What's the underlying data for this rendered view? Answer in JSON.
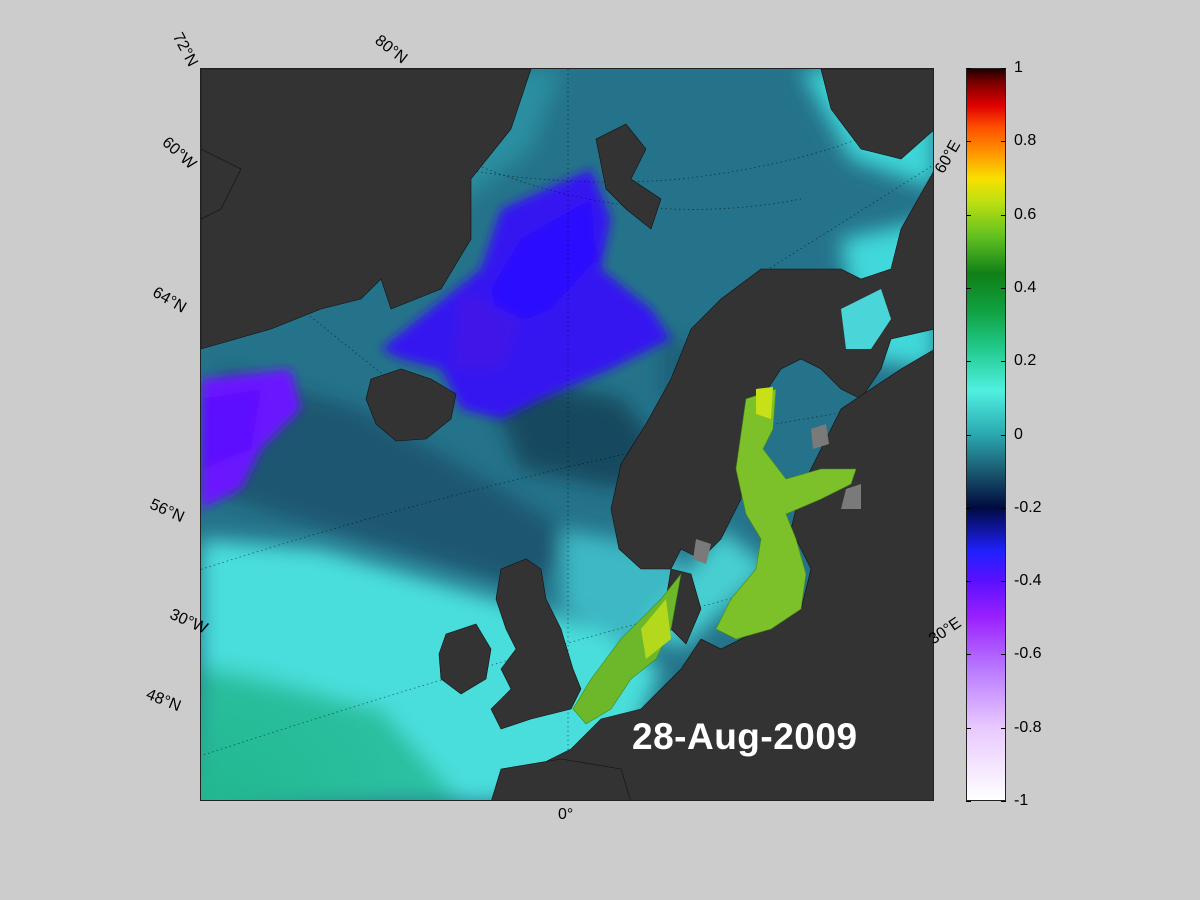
{
  "map": {
    "date": "28-Aug-2009",
    "lat_labels": [
      "72°N",
      "80°N",
      "60°W",
      "64°N",
      "56°N",
      "30°W",
      "48°N"
    ],
    "lon_labels": [
      "60°E",
      "30°E",
      "0°"
    ]
  },
  "colorbar": {
    "ticks": [
      "1",
      "0.8",
      "0.6",
      "0.4",
      "0.2",
      "0",
      "-0.2",
      "-0.4",
      "-0.6",
      "-0.8",
      "-1"
    ],
    "min": -1,
    "max": 1
  },
  "colors": {
    "background": "#cccccc",
    "land": "#333333",
    "ice": "#808080",
    "deep_ocean": "#1e5f72",
    "anomaly_low": "#3a10ff",
    "anomaly_high": "#8ad02a",
    "shelf": "#50e8e0"
  }
}
